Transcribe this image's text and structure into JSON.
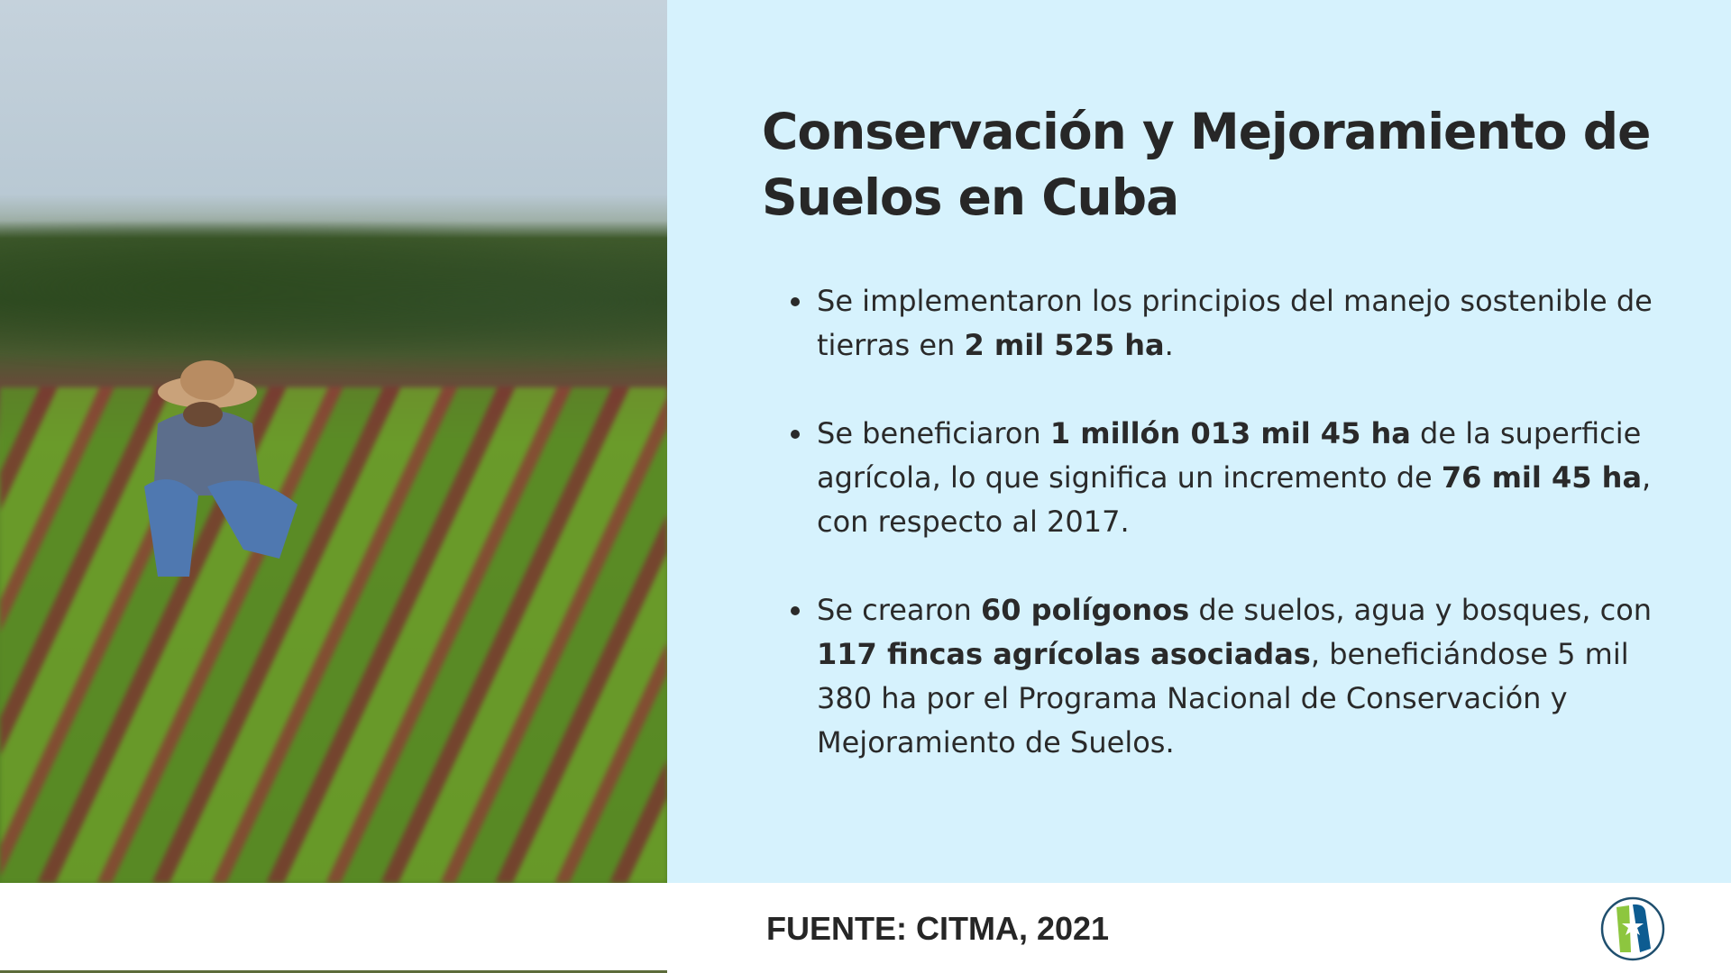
{
  "title": "Conservación y Mejoramiento de Suelos en Cuba",
  "bullets": [
    {
      "parts": [
        {
          "t": "Se implementaron los principios del manejo sostenible de tierras en "
        },
        {
          "t": "2 mil 525 ha",
          "b": true
        },
        {
          "t": "."
        }
      ]
    },
    {
      "parts": [
        {
          "t": "Se beneficiaron "
        },
        {
          "t": "1 millón 013 mil 45 ha",
          "b": true
        },
        {
          "t": " de la superficie agrícola, lo que significa un incremento de "
        },
        {
          "t": "76 mil 45 ha",
          "b": true
        },
        {
          "t": ", con respecto al 2017."
        }
      ]
    },
    {
      "parts": [
        {
          "t": "Se crearon "
        },
        {
          "t": "60 polígonos",
          "b": true
        },
        {
          "t": " de suelos, agua y bosques, con "
        },
        {
          "t": "117 fincas agrícolas asociadas",
          "b": true
        },
        {
          "t": ", beneficiándose 5 mil 380 ha por el Programa Nacional de Conservación y Mejoramiento de Suelos."
        }
      ]
    }
  ],
  "source": "FUENTE: CITMA, 2021",
  "colors": {
    "panel": "#d6f2fd",
    "logo_green": "#8dc63f",
    "logo_blue": "#0d5c91"
  }
}
